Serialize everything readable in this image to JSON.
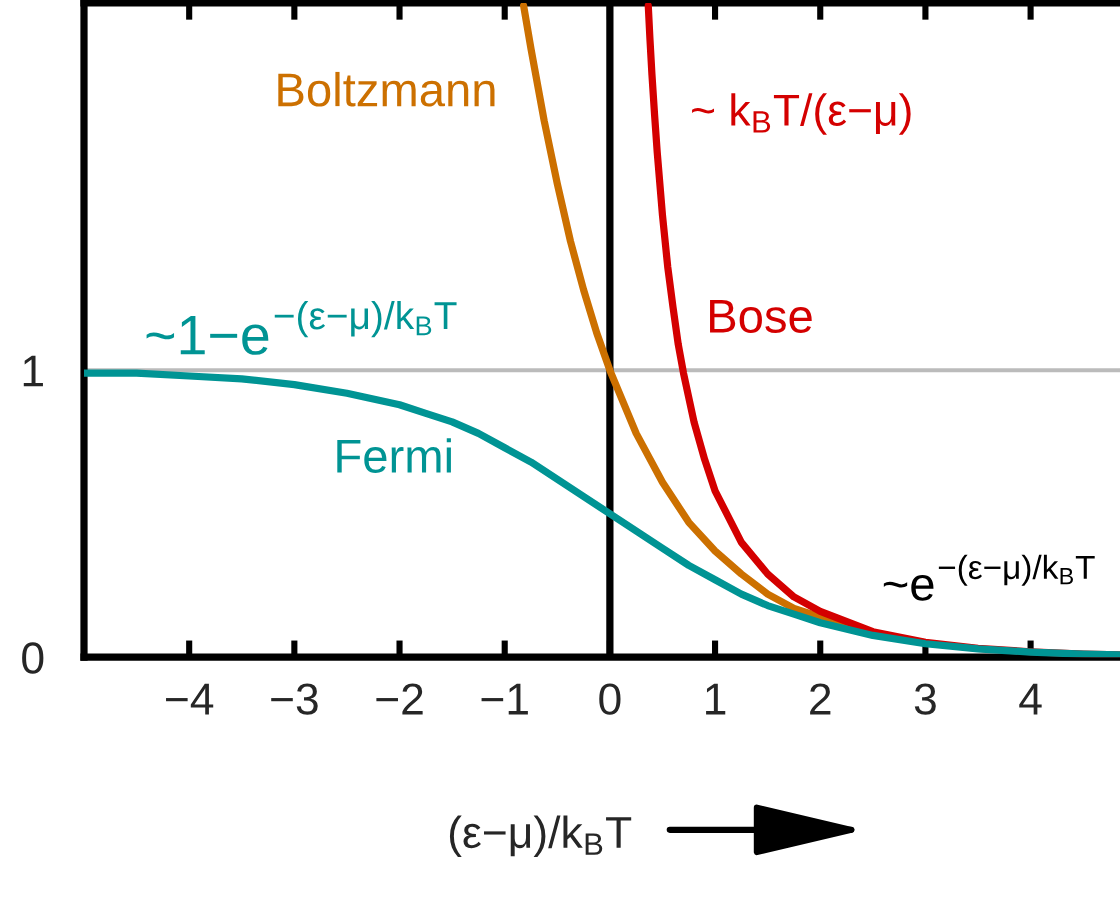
{
  "chart_data": {
    "type": "line",
    "xlabel": "(ε−μ)/k$_{B}$T",
    "xlim": [
      -5,
      4.85
    ],
    "xticks": [
      {
        "value": -4,
        "label": "−4"
      },
      {
        "value": -3,
        "label": "−3"
      },
      {
        "value": -2,
        "label": "−2"
      },
      {
        "value": -1,
        "label": "−1"
      },
      0,
      1,
      2,
      3,
      4
    ],
    "ylim": [
      0,
      2.28
    ],
    "yticks": [
      0,
      1
    ],
    "series": [
      {
        "name": "Boltzmann",
        "color": "#cc7000",
        "x": [
          -0.82,
          -0.75,
          -0.625,
          -0.5,
          -0.375,
          -0.25,
          -0.125,
          0,
          0.25,
          0.5,
          0.75,
          1,
          1.25,
          1.5,
          1.75,
          2,
          2.5,
          3
        ],
        "values": [
          2.27,
          2.12,
          1.87,
          1.65,
          1.45,
          1.28,
          1.13,
          1.0,
          0.78,
          0.61,
          0.47,
          0.37,
          0.29,
          0.22,
          0.17,
          0.14,
          0.082,
          0.05
        ]
      },
      {
        "name": "Bose",
        "color": "#d40000",
        "x": [
          0.365,
          0.38,
          0.4,
          0.425,
          0.45,
          0.5,
          0.55,
          0.6,
          0.65,
          0.7,
          0.8,
          0.9,
          1,
          1.25,
          1.5,
          1.75,
          2,
          2.5,
          3,
          3.5,
          4,
          4.5,
          4.85
        ],
        "values": [
          2.27,
          2.16,
          2.03,
          1.89,
          1.76,
          1.54,
          1.36,
          1.22,
          1.09,
          0.99,
          0.82,
          0.69,
          0.58,
          0.4,
          0.29,
          0.21,
          0.16,
          0.089,
          0.052,
          0.031,
          0.019,
          0.011,
          0.008
        ]
      },
      {
        "name": "Fermi",
        "color": "#009494",
        "x": [
          -5,
          -4.5,
          -4,
          -3.5,
          -3,
          -2.5,
          -2,
          -1.75,
          -1.5,
          -1.25,
          -1,
          -0.75,
          -0.5,
          -0.25,
          0,
          0.25,
          0.5,
          0.75,
          1,
          1.25,
          1.5,
          1.75,
          2,
          2.5,
          3,
          3.5,
          4,
          4.5,
          4.85
        ],
        "values": [
          0.99,
          0.99,
          0.98,
          0.97,
          0.95,
          0.92,
          0.88,
          0.85,
          0.82,
          0.78,
          0.73,
          0.68,
          0.62,
          0.56,
          0.5,
          0.44,
          0.38,
          0.32,
          0.27,
          0.22,
          0.18,
          0.15,
          0.12,
          0.076,
          0.047,
          0.029,
          0.018,
          0.011,
          0.008
        ]
      }
    ],
    "ref_lines": [
      {
        "axis": "x",
        "value": 0,
        "color": "#000000"
      },
      {
        "axis": "y",
        "value": 1,
        "color": "#bbbbbb"
      }
    ],
    "annotations": [
      "~ k$_{B}$T/(ε−μ)",
      "~1−e",
      "−(ε−μ)/k$_{B}$T",
      "~e",
      "−(ε−μ)/k$_{B}$T"
    ]
  }
}
